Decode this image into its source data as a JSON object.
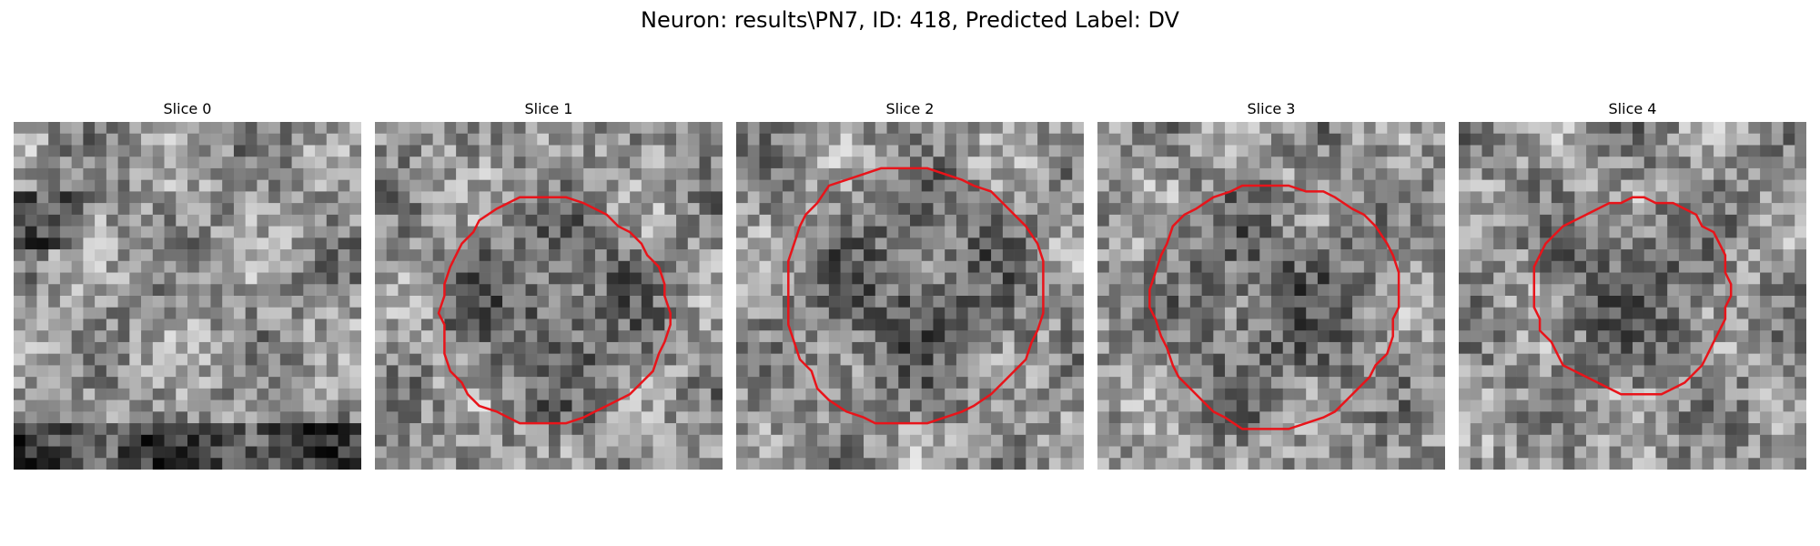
{
  "figure_title": "Neuron: results\\PN7, ID: 418, Predicted Label: DV",
  "panels": [
    {
      "title": "Slice 0",
      "has_contour": false,
      "seed": 11,
      "dark_blob": false
    },
    {
      "title": "Slice 1",
      "has_contour": true,
      "seed": 23,
      "dark_blob": true
    },
    {
      "title": "Slice 2",
      "has_contour": true,
      "seed": 37,
      "dark_blob": true
    },
    {
      "title": "Slice 3",
      "has_contour": true,
      "seed": 41,
      "dark_blob": true
    },
    {
      "title": "Slice 4",
      "has_contour": true,
      "seed": 59,
      "dark_blob": true
    }
  ],
  "colors": {
    "contour": "#e8141a"
  }
}
